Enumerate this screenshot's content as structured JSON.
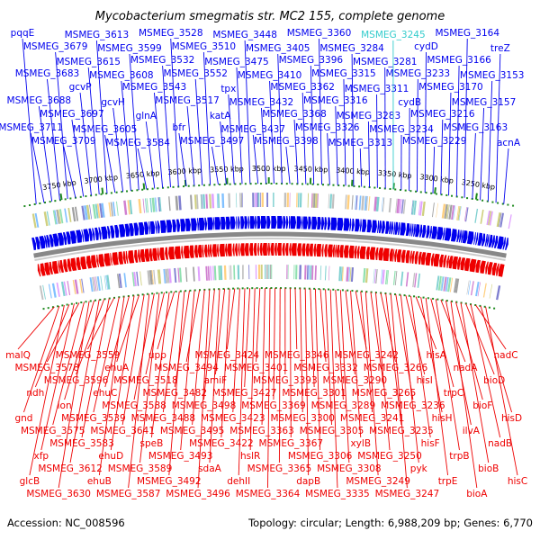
{
  "title": "Mycobacterium smegmatis str. MC2 155, complete genome",
  "footer": {
    "accession": "Accession: NC_008596",
    "topology": "Topology: circular; Length: 6,988,209 bp; Genes: 6,770"
  },
  "colors": {
    "forward": "#0000ee",
    "reverse": "#ee0000",
    "highlight": "#33cccc",
    "backbone": "#888888",
    "tick": "#1f8a1f"
  },
  "ticks": [
    {
      "label": "3750 kbp"
    },
    {
      "label": "3700 kbp"
    },
    {
      "label": "3650 kbp"
    },
    {
      "label": "3600 kbp"
    },
    {
      "label": "3550 kbp"
    },
    {
      "label": "3500 kbp"
    },
    {
      "label": "3450 kbp"
    },
    {
      "label": "3400 kbp"
    },
    {
      "label": "3350 kbp"
    },
    {
      "label": "3300 kbp"
    },
    {
      "label": "3250 kbp"
    }
  ],
  "forward_genes": [
    {
      "label": "pqqE"
    },
    {
      "label": "MSMEG_3711"
    },
    {
      "label": "MSMEG_3688"
    },
    {
      "label": "MSMEG_3683"
    },
    {
      "label": "MSMEG_3679"
    },
    {
      "label": "MSMEG_3709"
    },
    {
      "label": "MSMEG_3697"
    },
    {
      "label": "gcvP"
    },
    {
      "label": "MSMEG_3615"
    },
    {
      "label": "MSMEG_3613"
    },
    {
      "label": "MSMEG_3605"
    },
    {
      "label": "gcvH"
    },
    {
      "label": "MSMEG_3608"
    },
    {
      "label": "MSMEG_3599"
    },
    {
      "label": "MSMEG_3584"
    },
    {
      "label": "glnA"
    },
    {
      "label": "MSMEG_3543"
    },
    {
      "label": "MSMEG_3532"
    },
    {
      "label": "MSMEG_3528"
    },
    {
      "label": "bfr"
    },
    {
      "label": "MSMEG_3517"
    },
    {
      "label": "MSMEG_3552"
    },
    {
      "label": "MSMEG_3510"
    },
    {
      "label": "MSMEG_3497"
    },
    {
      "label": "katA"
    },
    {
      "label": "tpx"
    },
    {
      "label": "MSMEG_3475"
    },
    {
      "label": "MSMEG_3448"
    },
    {
      "label": "MSMEG_3437"
    },
    {
      "label": "MSMEG_3432"
    },
    {
      "label": "MSMEG_3410"
    },
    {
      "label": "MSMEG_3405"
    },
    {
      "label": "MSMEG_3398"
    },
    {
      "label": "MSMEG_3368"
    },
    {
      "label": "MSMEG_3362"
    },
    {
      "label": "MSMEG_3396"
    },
    {
      "label": "MSMEG_3360"
    },
    {
      "label": "MSMEG_3326"
    },
    {
      "label": "MSMEG_3316"
    },
    {
      "label": "MSMEG_3315"
    },
    {
      "label": "MSMEG_3284"
    },
    {
      "label": "MSMEG_3313"
    },
    {
      "label": "MSMEG_3283"
    },
    {
      "label": "MSMEG_3311"
    },
    {
      "label": "MSMEG_3281"
    },
    {
      "label": "MSMEG_3245",
      "highlight": true
    },
    {
      "label": "MSMEG_3234"
    },
    {
      "label": "cydB"
    },
    {
      "label": "MSMEG_3233"
    },
    {
      "label": "cydD"
    },
    {
      "label": "MSMEG_3229"
    },
    {
      "label": "MSMEG_3216"
    },
    {
      "label": "MSMEG_3170"
    },
    {
      "label": "MSMEG_3166"
    },
    {
      "label": "MSMEG_3164"
    },
    {
      "label": "MSMEG_3163"
    },
    {
      "label": "MSMEG_3157"
    },
    {
      "label": "MSMEG_3153"
    },
    {
      "label": "treZ"
    },
    {
      "label": "acnA"
    }
  ],
  "reverse_genes": [
    {
      "label": "malQ"
    },
    {
      "label": "gnd"
    },
    {
      "label": "glcB"
    },
    {
      "label": "ndh"
    },
    {
      "label": "xfp"
    },
    {
      "label": "MSMEG_3578"
    },
    {
      "label": "MSMEG_3575"
    },
    {
      "label": "MSMEG_3630"
    },
    {
      "label": "lon"
    },
    {
      "label": "MSMEG_3612"
    },
    {
      "label": "MSMEG_3596"
    },
    {
      "label": "MSMEG_3583"
    },
    {
      "label": "MSMEG_3559"
    },
    {
      "label": "MSMEG_3539"
    },
    {
      "label": "ehuB"
    },
    {
      "label": "ehuC"
    },
    {
      "label": "ehuD"
    },
    {
      "label": "ehuA"
    },
    {
      "label": "MSMEG_3641"
    },
    {
      "label": "MSMEG_3587"
    },
    {
      "label": "MSMEG_3588"
    },
    {
      "label": "MSMEG_3589"
    },
    {
      "label": "MSMEG_3518"
    },
    {
      "label": "speB"
    },
    {
      "label": "upp"
    },
    {
      "label": "MSMEG_3488"
    },
    {
      "label": "MSMEG_3492"
    },
    {
      "label": "MSMEG_3482"
    },
    {
      "label": "MSMEG_3493"
    },
    {
      "label": "MSMEG_3494"
    },
    {
      "label": "MSMEG_3495"
    },
    {
      "label": "MSMEG_3496"
    },
    {
      "label": "MSMEG_3498"
    },
    {
      "label": "sdaA"
    },
    {
      "label": "amiF"
    },
    {
      "label": "MSMEG_3422"
    },
    {
      "label": "MSMEG_3424"
    },
    {
      "label": "MSMEG_3423"
    },
    {
      "label": "dehII"
    },
    {
      "label": "MSMEG_3427"
    },
    {
      "label": "hslR"
    },
    {
      "label": "MSMEG_3401"
    },
    {
      "label": "MSMEG_3363"
    },
    {
      "label": "MSMEG_3364"
    },
    {
      "label": "MSMEG_3369"
    },
    {
      "label": "MSMEG_3365"
    },
    {
      "label": "MSMEG_3393"
    },
    {
      "label": "MSMEG_3367"
    },
    {
      "label": "MSMEG_3346"
    },
    {
      "label": "MSMEG_3300"
    },
    {
      "label": "dapB"
    },
    {
      "label": "MSMEG_3301"
    },
    {
      "label": "MSMEG_3306"
    },
    {
      "label": "MSMEG_3332"
    },
    {
      "label": "MSMEG_3305"
    },
    {
      "label": "MSMEG_3335"
    },
    {
      "label": "MSMEG_3289"
    },
    {
      "label": "MSMEG_3308"
    },
    {
      "label": "MSMEG_3290"
    },
    {
      "label": "xylB"
    },
    {
      "label": "MSMEG_3242"
    },
    {
      "label": "MSMEG_3241"
    },
    {
      "label": "MSMEG_3249"
    },
    {
      "label": "MSMEG_3265"
    },
    {
      "label": "MSMEG_3250"
    },
    {
      "label": "MSMEG_3266"
    },
    {
      "label": "MSMEG_3235"
    },
    {
      "label": "MSMEG_3247"
    },
    {
      "label": "MSMEG_3236"
    },
    {
      "label": "pyk"
    },
    {
      "label": "hisI"
    },
    {
      "label": "hisF"
    },
    {
      "label": "hisA"
    },
    {
      "label": "hisH"
    },
    {
      "label": "trpE"
    },
    {
      "label": "trpC"
    },
    {
      "label": "trpB"
    },
    {
      "label": "nadA"
    },
    {
      "label": "ilvA"
    },
    {
      "label": "bioA"
    },
    {
      "label": "bioF"
    },
    {
      "label": "bioB"
    },
    {
      "label": "bioD"
    },
    {
      "label": "nadB"
    },
    {
      "label": "nadC"
    },
    {
      "label": "hisD"
    },
    {
      "label": "hisC"
    }
  ]
}
